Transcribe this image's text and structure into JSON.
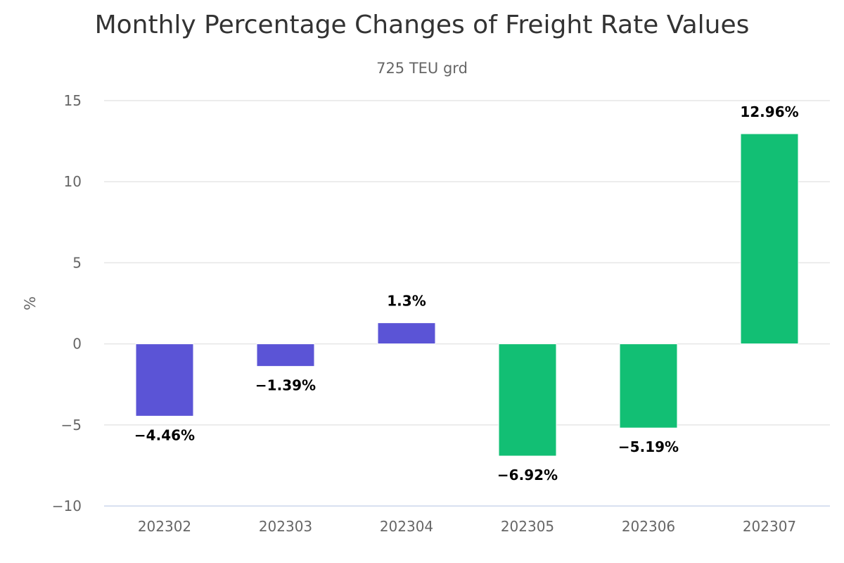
{
  "chart_data": {
    "type": "bar",
    "title": "Monthly Percentage Changes of Freight Rate Values",
    "subtitle": "725 TEU grd",
    "xlabel": "",
    "ylabel": "%",
    "categories": [
      "202302",
      "202303",
      "202304",
      "202305",
      "202306",
      "202307"
    ],
    "values": [
      -4.46,
      -1.39,
      1.3,
      -6.92,
      -5.19,
      12.96
    ],
    "data_labels": [
      "−4.46%",
      "−1.39%",
      "1.3%",
      "−6.92%",
      "−5.19%",
      "12.96%"
    ],
    "bar_colors": [
      "#5b54d6",
      "#5b54d6",
      "#5b54d6",
      "#12bf74",
      "#12bf74",
      "#12bf74"
    ],
    "ylim": [
      -10,
      15
    ],
    "yticks": [
      15,
      10,
      5,
      0,
      -5,
      -10
    ],
    "ytick_labels": [
      "15",
      "10",
      "5",
      "0",
      "−5",
      "−10"
    ],
    "grid": true,
    "legend": "none"
  }
}
